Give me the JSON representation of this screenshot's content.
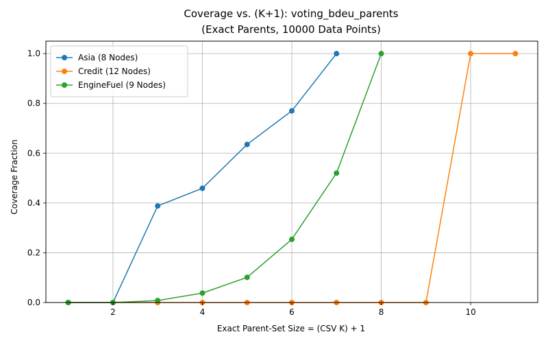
{
  "chart_data": {
    "type": "line",
    "title": [
      "Coverage vs. (K+1): voting_bdeu_parents",
      "(Exact Parents, 10000 Data Points)"
    ],
    "xlabel": "Exact Parent-Set Size = (CSV K) + 1",
    "ylabel": "Coverage Fraction",
    "xlim": [
      0.5,
      11.5
    ],
    "ylim": [
      0,
      1.05
    ],
    "xticks": [
      2,
      4,
      6,
      8,
      10
    ],
    "yticks": [
      0.0,
      0.2,
      0.4,
      0.6,
      0.8,
      1.0
    ],
    "xtick_labels": [
      "2",
      "4",
      "6",
      "8",
      "10"
    ],
    "ytick_labels": [
      "0.0",
      "0.2",
      "0.4",
      "0.6",
      "0.8",
      "1.0"
    ],
    "grid": true,
    "legend_position": "top-left",
    "series": [
      {
        "name": "Asia (8 Nodes)",
        "color": "#1f77b4",
        "x": [
          1,
          2,
          3,
          4,
          5,
          6,
          7
        ],
        "y": [
          0.0,
          0.0,
          0.388,
          0.459,
          0.635,
          0.77,
          1.0
        ]
      },
      {
        "name": "Credit (12 Nodes)",
        "color": "#ff7f0e",
        "x": [
          1,
          2,
          3,
          4,
          5,
          6,
          7,
          8,
          9,
          10,
          11
        ],
        "y": [
          0.0,
          0.0,
          0.0,
          0.0,
          0.0,
          0.0,
          0.0,
          0.0,
          0.0,
          1.0,
          1.0
        ]
      },
      {
        "name": "EngineFuel (9 Nodes)",
        "color": "#2ca02c",
        "x": [
          1,
          2,
          3,
          4,
          5,
          6,
          7,
          8
        ],
        "y": [
          0.0,
          0.0,
          0.008,
          0.038,
          0.101,
          0.254,
          0.52,
          1.0
        ]
      }
    ]
  }
}
